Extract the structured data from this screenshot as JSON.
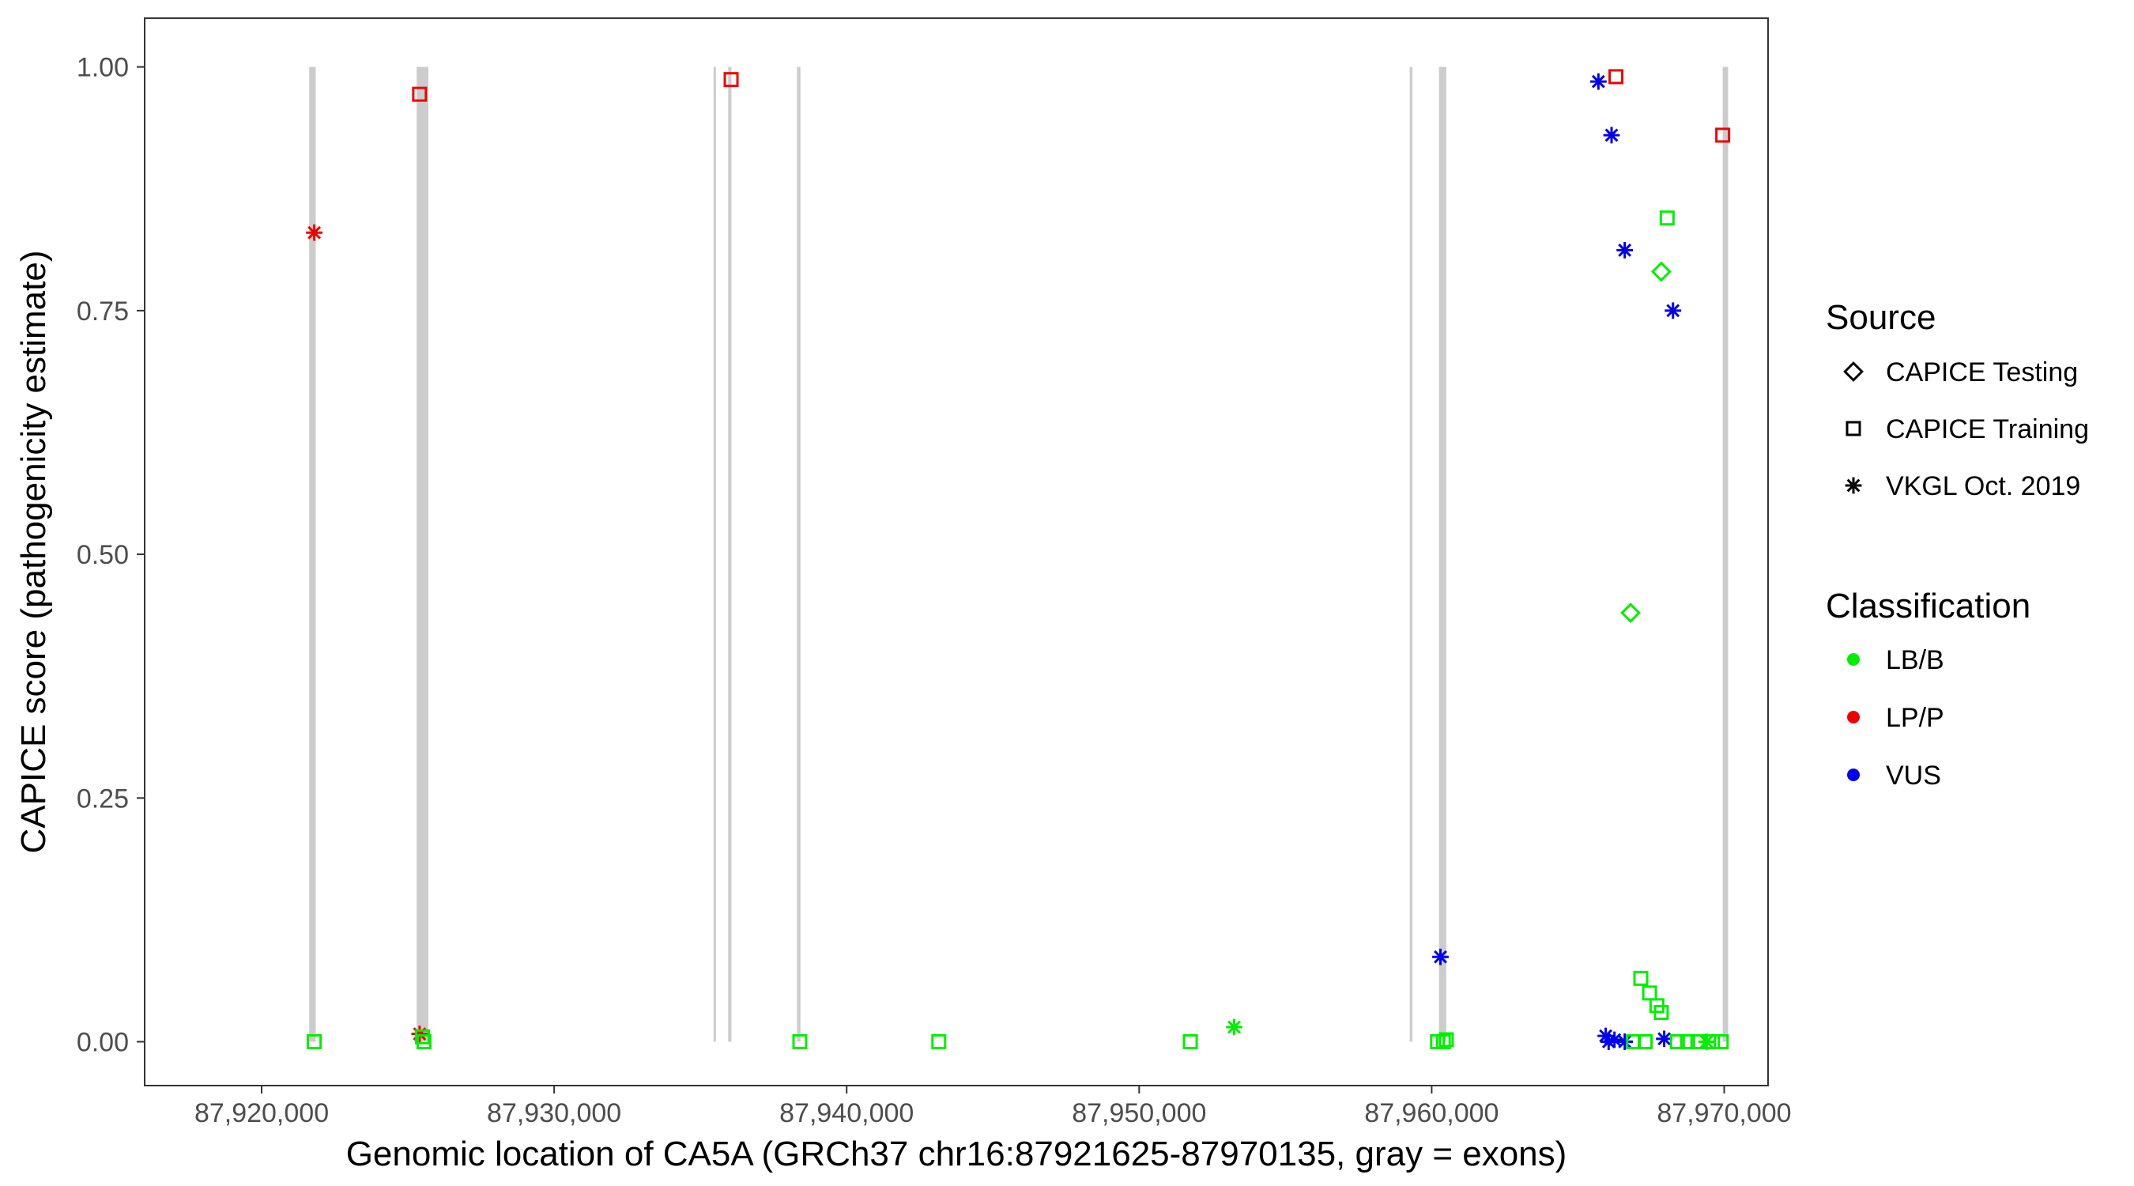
{
  "chart_data": {
    "type": "scatter",
    "xlabel": "Genomic location of CA5A (GRCh37 chr16:87921625-87970135, gray = exons)",
    "ylabel": "CAPICE score (pathogenicity estimate)",
    "xlim": [
      87916000,
      87971500
    ],
    "ylim": [
      -0.045,
      1.05
    ],
    "x_ticks": [
      87920000,
      87930000,
      87940000,
      87950000,
      87960000,
      87970000
    ],
    "x_tick_labels": [
      "87,920,000",
      "87,930,000",
      "87,940,000",
      "87,950,000",
      "87,960,000",
      "87,970,000"
    ],
    "y_ticks": [
      0,
      0.25,
      0.5,
      0.75,
      1.0
    ],
    "y_tick_labels": [
      "0.00",
      "0.25",
      "0.50",
      "0.75",
      "1.00"
    ],
    "grid": false,
    "exon_color": "#cccccc",
    "exons": [
      {
        "start": 87921625,
        "end": 87921850
      },
      {
        "start": 87925300,
        "end": 87925700
      },
      {
        "start": 87935450,
        "end": 87935520
      },
      {
        "start": 87935950,
        "end": 87936060
      },
      {
        "start": 87938300,
        "end": 87938420
      },
      {
        "start": 87959250,
        "end": 87959340
      },
      {
        "start": 87960250,
        "end": 87960500
      },
      {
        "start": 87969950,
        "end": 87970135
      }
    ],
    "legend_source": {
      "title": "Source",
      "items": [
        {
          "label": "CAPICE Testing",
          "shape": "diamond"
        },
        {
          "label": "CAPICE Training",
          "shape": "square"
        },
        {
          "label": "VKGL Oct. 2019",
          "shape": "asterisk"
        }
      ]
    },
    "legend_classification": {
      "title": "Classification",
      "items": [
        {
          "label": "LB/B",
          "color": "#00ee00"
        },
        {
          "label": "LP/P",
          "color": "#ee0000"
        },
        {
          "label": "VUS",
          "color": "#0000ee"
        }
      ]
    },
    "legend_position": "right",
    "points": [
      {
        "x": 87921800,
        "y": 0.83,
        "source": "asterisk",
        "class": "LP/P"
      },
      {
        "x": 87921800,
        "y": 0.0,
        "source": "square",
        "class": "LB/B"
      },
      {
        "x": 87925400,
        "y": 0.972,
        "source": "square",
        "class": "LP/P"
      },
      {
        "x": 87925400,
        "y": 0.008,
        "source": "asterisk",
        "class": "LP/P"
      },
      {
        "x": 87925500,
        "y": 0.005,
        "source": "square",
        "class": "LB/B"
      },
      {
        "x": 87925550,
        "y": 0.0,
        "source": "square",
        "class": "LB/B"
      },
      {
        "x": 87936050,
        "y": 0.987,
        "source": "square",
        "class": "LP/P"
      },
      {
        "x": 87938400,
        "y": 0.0,
        "source": "square",
        "class": "LB/B"
      },
      {
        "x": 87943150,
        "y": 0.0,
        "source": "square",
        "class": "LB/B"
      },
      {
        "x": 87951750,
        "y": 0.0,
        "source": "square",
        "class": "LB/B"
      },
      {
        "x": 87953250,
        "y": 0.015,
        "source": "asterisk",
        "class": "LB/B"
      },
      {
        "x": 87960300,
        "y": 0.087,
        "source": "asterisk",
        "class": "VUS"
      },
      {
        "x": 87960200,
        "y": 0.0,
        "source": "square",
        "class": "LB/B"
      },
      {
        "x": 87960400,
        "y": 0.0,
        "source": "square",
        "class": "LB/B"
      },
      {
        "x": 87960500,
        "y": 0.002,
        "source": "square",
        "class": "LB/B"
      },
      {
        "x": 87965700,
        "y": 0.985,
        "source": "asterisk",
        "class": "VUS"
      },
      {
        "x": 87966300,
        "y": 0.99,
        "source": "square",
        "class": "LP/P"
      },
      {
        "x": 87966150,
        "y": 0.93,
        "source": "asterisk",
        "class": "VUS"
      },
      {
        "x": 87966600,
        "y": 0.812,
        "source": "asterisk",
        "class": "VUS"
      },
      {
        "x": 87968050,
        "y": 0.845,
        "source": "square",
        "class": "LB/B"
      },
      {
        "x": 87967850,
        "y": 0.79,
        "source": "diamond",
        "class": "LB/B"
      },
      {
        "x": 87968250,
        "y": 0.75,
        "source": "asterisk",
        "class": "VUS"
      },
      {
        "x": 87966800,
        "y": 0.44,
        "source": "diamond",
        "class": "LB/B"
      },
      {
        "x": 87969950,
        "y": 0.93,
        "source": "square",
        "class": "LP/P"
      },
      {
        "x": 87967150,
        "y": 0.065,
        "source": "square",
        "class": "LB/B"
      },
      {
        "x": 87967450,
        "y": 0.05,
        "source": "square",
        "class": "LB/B"
      },
      {
        "x": 87967700,
        "y": 0.037,
        "source": "square",
        "class": "LB/B"
      },
      {
        "x": 87967850,
        "y": 0.03,
        "source": "square",
        "class": "LB/B"
      },
      {
        "x": 87965950,
        "y": 0.006,
        "source": "asterisk",
        "class": "VUS"
      },
      {
        "x": 87966050,
        "y": 0.0,
        "source": "asterisk",
        "class": "VUS"
      },
      {
        "x": 87966250,
        "y": 0.002,
        "source": "asterisk",
        "class": "VUS"
      },
      {
        "x": 87966600,
        "y": 0.0,
        "source": "asterisk",
        "class": "VUS"
      },
      {
        "x": 87966900,
        "y": 0.0,
        "source": "square",
        "class": "LB/B"
      },
      {
        "x": 87967300,
        "y": 0.0,
        "source": "square",
        "class": "LB/B"
      },
      {
        "x": 87967950,
        "y": 0.003,
        "source": "asterisk",
        "class": "VUS"
      },
      {
        "x": 87968400,
        "y": 0.0,
        "source": "square",
        "class": "LB/B"
      },
      {
        "x": 87968750,
        "y": 0.0,
        "source": "square",
        "class": "LB/B"
      },
      {
        "x": 87969100,
        "y": 0.0,
        "source": "square",
        "class": "LB/B"
      },
      {
        "x": 87969400,
        "y": 0.0,
        "source": "asterisk",
        "class": "LB/B"
      },
      {
        "x": 87969600,
        "y": 0.0,
        "source": "square",
        "class": "LB/B"
      },
      {
        "x": 87969900,
        "y": 0.0,
        "source": "square",
        "class": "LB/B"
      }
    ]
  }
}
